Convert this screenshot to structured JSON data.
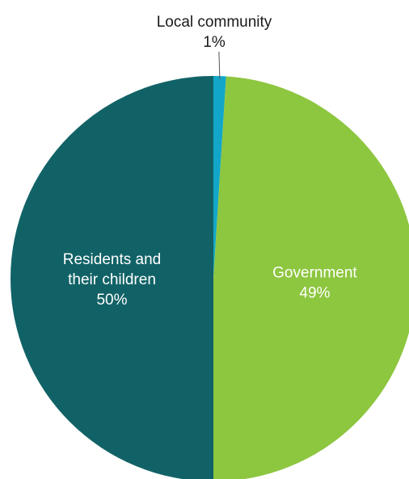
{
  "chart_data": {
    "type": "pie",
    "title": "",
    "slices": [
      {
        "label_lines": [
          "Local community"
        ],
        "value_label": "1%",
        "value": 1,
        "color": "#12A7C8",
        "label_color": "#1a1a1a",
        "label_placement": "outside-top"
      },
      {
        "label_lines": [
          "Government"
        ],
        "value_label": "49%",
        "value": 49,
        "color": "#8DC63F",
        "label_color": "#ffffff",
        "label_placement": "inside"
      },
      {
        "label_lines": [
          "Residents and",
          "their children"
        ],
        "value_label": "50%",
        "value": 50,
        "color": "#116266",
        "label_color": "#ffffff",
        "label_placement": "inside"
      }
    ],
    "start": "12 o'clock",
    "direction": "clockwise",
    "legend": "none"
  }
}
